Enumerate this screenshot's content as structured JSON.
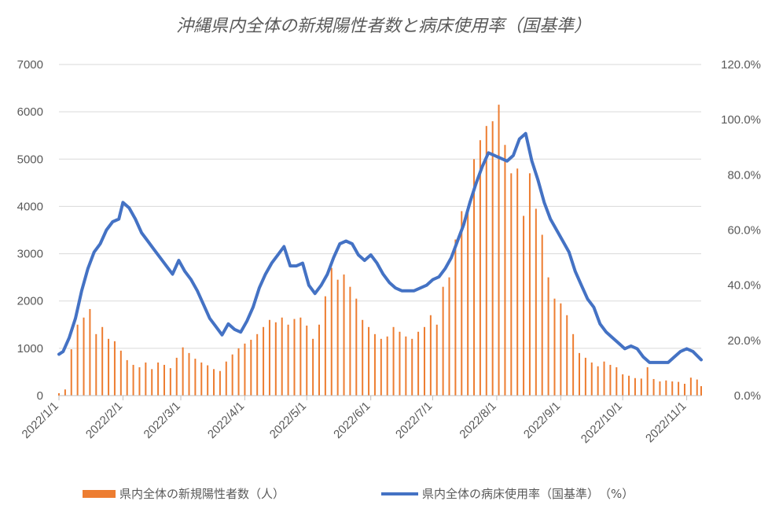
{
  "chart_data": {
    "type": "bar+line",
    "title": "沖縄県内全体の新規陽性者数と病床使用率（国基準）",
    "xlabel": "",
    "ylabel_left": "",
    "ylabel_right": "",
    "x_start": "2022/1/1",
    "x_end": "2022/11/8",
    "x_ticks": [
      "2022/1/1",
      "2022/2/1",
      "2022/3/1",
      "2022/4/1",
      "2022/5/1",
      "2022/6/1",
      "2022/7/1",
      "2022/8/1",
      "2022/9/1",
      "2022/10/1",
      "2022/11/1"
    ],
    "y_left_ticks": [
      "0",
      "1000",
      "2000",
      "3000",
      "4000",
      "5000",
      "6000",
      "7000"
    ],
    "y_left_lim": [
      0,
      7000
    ],
    "y_right_ticks": [
      "0.0%",
      "20.0%",
      "40.0%",
      "60.0%",
      "80.0%",
      "100.0%",
      "120.0%"
    ],
    "y_right_lim": [
      0,
      120
    ],
    "grid": "horizontal",
    "legend_position": "bottom",
    "series": [
      {
        "name": "県内全体の新規陽性者数（人）",
        "type": "bar",
        "axis": "left",
        "color": "#ED7D31",
        "points": [
          [
            "2022/1/1",
            50
          ],
          [
            "2022/1/4",
            130
          ],
          [
            "2022/1/7",
            980
          ],
          [
            "2022/1/10",
            1500
          ],
          [
            "2022/1/13",
            1650
          ],
          [
            "2022/1/16",
            1830
          ],
          [
            "2022/1/19",
            1300
          ],
          [
            "2022/1/22",
            1450
          ],
          [
            "2022/1/25",
            1200
          ],
          [
            "2022/1/28",
            1150
          ],
          [
            "2022/1/31",
            950
          ],
          [
            "2022/2/3",
            750
          ],
          [
            "2022/2/6",
            650
          ],
          [
            "2022/2/9",
            600
          ],
          [
            "2022/2/12",
            700
          ],
          [
            "2022/2/15",
            560
          ],
          [
            "2022/2/18",
            700
          ],
          [
            "2022/2/21",
            650
          ],
          [
            "2022/2/24",
            580
          ],
          [
            "2022/2/27",
            800
          ],
          [
            "2022/3/2",
            1020
          ],
          [
            "2022/3/5",
            900
          ],
          [
            "2022/3/8",
            780
          ],
          [
            "2022/3/11",
            700
          ],
          [
            "2022/3/14",
            640
          ],
          [
            "2022/3/17",
            560
          ],
          [
            "2022/3/20",
            520
          ],
          [
            "2022/3/23",
            720
          ],
          [
            "2022/3/26",
            870
          ],
          [
            "2022/3/29",
            1000
          ],
          [
            "2022/4/1",
            1100
          ],
          [
            "2022/4/4",
            1180
          ],
          [
            "2022/4/7",
            1300
          ],
          [
            "2022/4/10",
            1450
          ],
          [
            "2022/4/13",
            1600
          ],
          [
            "2022/4/16",
            1550
          ],
          [
            "2022/4/19",
            1650
          ],
          [
            "2022/4/22",
            1500
          ],
          [
            "2022/4/25",
            1620
          ],
          [
            "2022/4/28",
            1650
          ],
          [
            "2022/5/1",
            1480
          ],
          [
            "2022/5/4",
            1200
          ],
          [
            "2022/5/7",
            1500
          ],
          [
            "2022/5/10",
            2100
          ],
          [
            "2022/5/13",
            2700
          ],
          [
            "2022/5/16",
            2450
          ],
          [
            "2022/5/19",
            2560
          ],
          [
            "2022/5/22",
            2300
          ],
          [
            "2022/5/25",
            2050
          ],
          [
            "2022/5/28",
            1600
          ],
          [
            "2022/5/31",
            1450
          ],
          [
            "2022/6/3",
            1300
          ],
          [
            "2022/6/6",
            1200
          ],
          [
            "2022/6/9",
            1250
          ],
          [
            "2022/6/12",
            1450
          ],
          [
            "2022/6/15",
            1350
          ],
          [
            "2022/6/18",
            1250
          ],
          [
            "2022/6/21",
            1200
          ],
          [
            "2022/6/24",
            1350
          ],
          [
            "2022/6/27",
            1450
          ],
          [
            "2022/6/30",
            1700
          ],
          [
            "2022/7/3",
            1500
          ],
          [
            "2022/7/6",
            2300
          ],
          [
            "2022/7/9",
            2500
          ],
          [
            "2022/7/12",
            3300
          ],
          [
            "2022/7/15",
            3900
          ],
          [
            "2022/7/18",
            4000
          ],
          [
            "2022/7/21",
            5000
          ],
          [
            "2022/7/24",
            5400
          ],
          [
            "2022/7/27",
            5700
          ],
          [
            "2022/7/30",
            5800
          ],
          [
            "2022/8/2",
            6150
          ],
          [
            "2022/8/5",
            5300
          ],
          [
            "2022/8/8",
            4700
          ],
          [
            "2022/8/11",
            4800
          ],
          [
            "2022/8/14",
            3800
          ],
          [
            "2022/8/17",
            4700
          ],
          [
            "2022/8/20",
            3950
          ],
          [
            "2022/8/23",
            3400
          ],
          [
            "2022/8/26",
            2500
          ],
          [
            "2022/8/29",
            2050
          ],
          [
            "2022/9/1",
            1950
          ],
          [
            "2022/9/4",
            1700
          ],
          [
            "2022/9/7",
            1300
          ],
          [
            "2022/9/10",
            900
          ],
          [
            "2022/9/13",
            800
          ],
          [
            "2022/9/16",
            700
          ],
          [
            "2022/9/19",
            620
          ],
          [
            "2022/9/22",
            720
          ],
          [
            "2022/9/25",
            650
          ],
          [
            "2022/9/28",
            600
          ],
          [
            "2022/10/1",
            450
          ],
          [
            "2022/10/4",
            420
          ],
          [
            "2022/10/7",
            370
          ],
          [
            "2022/10/10",
            360
          ],
          [
            "2022/10/13",
            600
          ],
          [
            "2022/10/16",
            350
          ],
          [
            "2022/10/19",
            300
          ],
          [
            "2022/10/22",
            320
          ],
          [
            "2022/10/25",
            300
          ],
          [
            "2022/10/28",
            290
          ],
          [
            "2022/10/31",
            250
          ],
          [
            "2022/11/3",
            380
          ],
          [
            "2022/11/6",
            340
          ],
          [
            "2022/11/8",
            200
          ]
        ]
      },
      {
        "name": "県内全体の病床使用率（国基準）（%）",
        "type": "line",
        "axis": "right",
        "color": "#4472C4",
        "points": [
          [
            "2022/1/1",
            15
          ],
          [
            "2022/1/3",
            16
          ],
          [
            "2022/1/6",
            21
          ],
          [
            "2022/1/9",
            28
          ],
          [
            "2022/1/12",
            38
          ],
          [
            "2022/1/15",
            46
          ],
          [
            "2022/1/18",
            52
          ],
          [
            "2022/1/21",
            55
          ],
          [
            "2022/1/24",
            60
          ],
          [
            "2022/1/27",
            63
          ],
          [
            "2022/1/30",
            64
          ],
          [
            "2022/2/1",
            70
          ],
          [
            "2022/2/4",
            68
          ],
          [
            "2022/2/7",
            64
          ],
          [
            "2022/2/10",
            59
          ],
          [
            "2022/2/13",
            56
          ],
          [
            "2022/2/16",
            53
          ],
          [
            "2022/2/19",
            50
          ],
          [
            "2022/2/22",
            47
          ],
          [
            "2022/2/25",
            44
          ],
          [
            "2022/2/28",
            49
          ],
          [
            "2022/3/3",
            45
          ],
          [
            "2022/3/6",
            42
          ],
          [
            "2022/3/9",
            38
          ],
          [
            "2022/3/12",
            33
          ],
          [
            "2022/3/15",
            28
          ],
          [
            "2022/3/18",
            25
          ],
          [
            "2022/3/21",
            22
          ],
          [
            "2022/3/24",
            26
          ],
          [
            "2022/3/27",
            24
          ],
          [
            "2022/3/30",
            23
          ],
          [
            "2022/4/2",
            27
          ],
          [
            "2022/4/5",
            32
          ],
          [
            "2022/4/8",
            39
          ],
          [
            "2022/4/11",
            44
          ],
          [
            "2022/4/14",
            48
          ],
          [
            "2022/4/17",
            51
          ],
          [
            "2022/4/20",
            54
          ],
          [
            "2022/4/23",
            47
          ],
          [
            "2022/4/26",
            47
          ],
          [
            "2022/4/29",
            48
          ],
          [
            "2022/5/2",
            40
          ],
          [
            "2022/5/5",
            37
          ],
          [
            "2022/5/8",
            40
          ],
          [
            "2022/5/11",
            44
          ],
          [
            "2022/5/14",
            50
          ],
          [
            "2022/5/17",
            55
          ],
          [
            "2022/5/20",
            56
          ],
          [
            "2022/5/23",
            55
          ],
          [
            "2022/5/26",
            51
          ],
          [
            "2022/5/29",
            49
          ],
          [
            "2022/6/1",
            51
          ],
          [
            "2022/6/4",
            48
          ],
          [
            "2022/6/7",
            44
          ],
          [
            "2022/6/10",
            41
          ],
          [
            "2022/6/13",
            39
          ],
          [
            "2022/6/16",
            38
          ],
          [
            "2022/6/19",
            38
          ],
          [
            "2022/6/22",
            38
          ],
          [
            "2022/6/25",
            39
          ],
          [
            "2022/6/28",
            40
          ],
          [
            "2022/7/1",
            42
          ],
          [
            "2022/7/4",
            43
          ],
          [
            "2022/7/7",
            46
          ],
          [
            "2022/7/10",
            50
          ],
          [
            "2022/7/13",
            56
          ],
          [
            "2022/7/16",
            62
          ],
          [
            "2022/7/19",
            70
          ],
          [
            "2022/7/22",
            77
          ],
          [
            "2022/7/25",
            83
          ],
          [
            "2022/7/28",
            88
          ],
          [
            "2022/7/31",
            87
          ],
          [
            "2022/8/3",
            86
          ],
          [
            "2022/8/6",
            85
          ],
          [
            "2022/8/9",
            87
          ],
          [
            "2022/8/12",
            93
          ],
          [
            "2022/8/15",
            95
          ],
          [
            "2022/8/18",
            85
          ],
          [
            "2022/8/21",
            78
          ],
          [
            "2022/8/24",
            70
          ],
          [
            "2022/8/27",
            64
          ],
          [
            "2022/8/30",
            60
          ],
          [
            "2022/9/2",
            56
          ],
          [
            "2022/9/5",
            52
          ],
          [
            "2022/9/8",
            45
          ],
          [
            "2022/9/11",
            40
          ],
          [
            "2022/9/14",
            35
          ],
          [
            "2022/9/17",
            32
          ],
          [
            "2022/9/20",
            26
          ],
          [
            "2022/9/23",
            23
          ],
          [
            "2022/9/26",
            21
          ],
          [
            "2022/9/29",
            19
          ],
          [
            "2022/10/2",
            17
          ],
          [
            "2022/10/5",
            18
          ],
          [
            "2022/10/8",
            17
          ],
          [
            "2022/10/11",
            14
          ],
          [
            "2022/10/14",
            12
          ],
          [
            "2022/10/17",
            12
          ],
          [
            "2022/10/20",
            12
          ],
          [
            "2022/10/23",
            12
          ],
          [
            "2022/10/26",
            14
          ],
          [
            "2022/10/29",
            16
          ],
          [
            "2022/11/1",
            17
          ],
          [
            "2022/11/4",
            16
          ],
          [
            "2022/11/8",
            13
          ]
        ]
      }
    ]
  },
  "legend": {
    "items": [
      {
        "label": "県内全体の新規陽性者数（人）",
        "color": "#ED7D31"
      },
      {
        "label": "県内全体の病床使用率（国基準）　（%）",
        "color": "#4472C4"
      }
    ]
  }
}
